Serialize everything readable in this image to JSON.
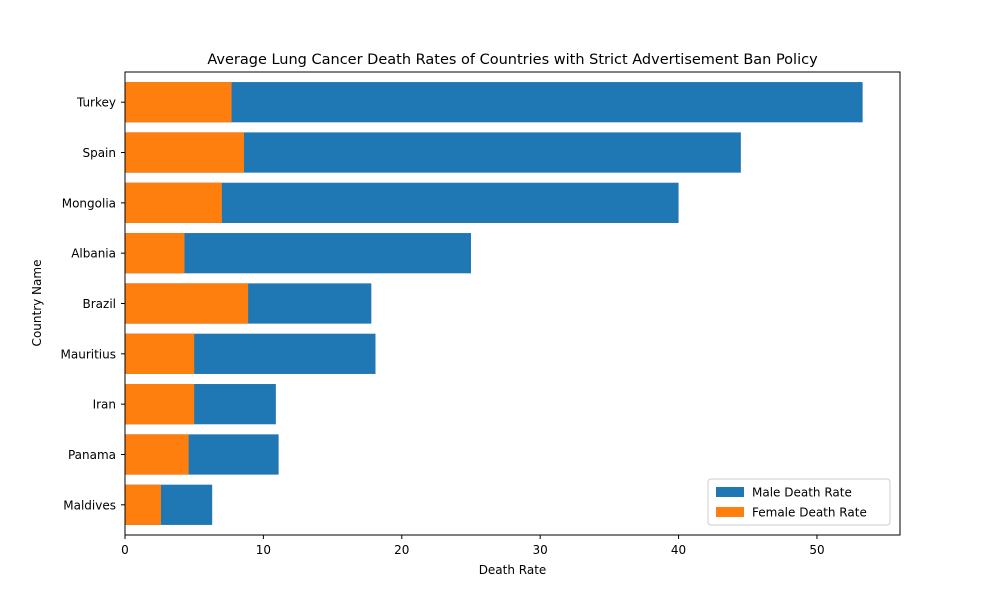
{
  "chart_data": {
    "type": "bar",
    "orientation": "horizontal",
    "stacking": "overlay",
    "title": "Average Lung Cancer Death Rates of Countries with Strict Advertisement Ban Policy",
    "xlabel": "Death Rate",
    "ylabel": "Country Name",
    "categories": [
      "Turkey",
      "Spain",
      "Mongolia",
      "Albania",
      "Brazil",
      "Mauritius",
      "Iran",
      "Panama",
      "Maldives"
    ],
    "series": [
      {
        "name": "Male Death Rate",
        "color": "#1f77b4",
        "values": [
          53.3,
          44.5,
          40.0,
          25.0,
          17.8,
          18.1,
          10.9,
          11.1,
          6.3
        ]
      },
      {
        "name": "Female Death Rate",
        "color": "#ff7f0e",
        "values": [
          7.7,
          8.6,
          7.0,
          4.3,
          8.9,
          5.0,
          5.0,
          4.6,
          2.6
        ]
      }
    ],
    "xlim": [
      0,
      56
    ],
    "xticks": [
      0,
      10,
      20,
      30,
      40,
      50
    ],
    "grid": false,
    "legend": "lower-right"
  }
}
